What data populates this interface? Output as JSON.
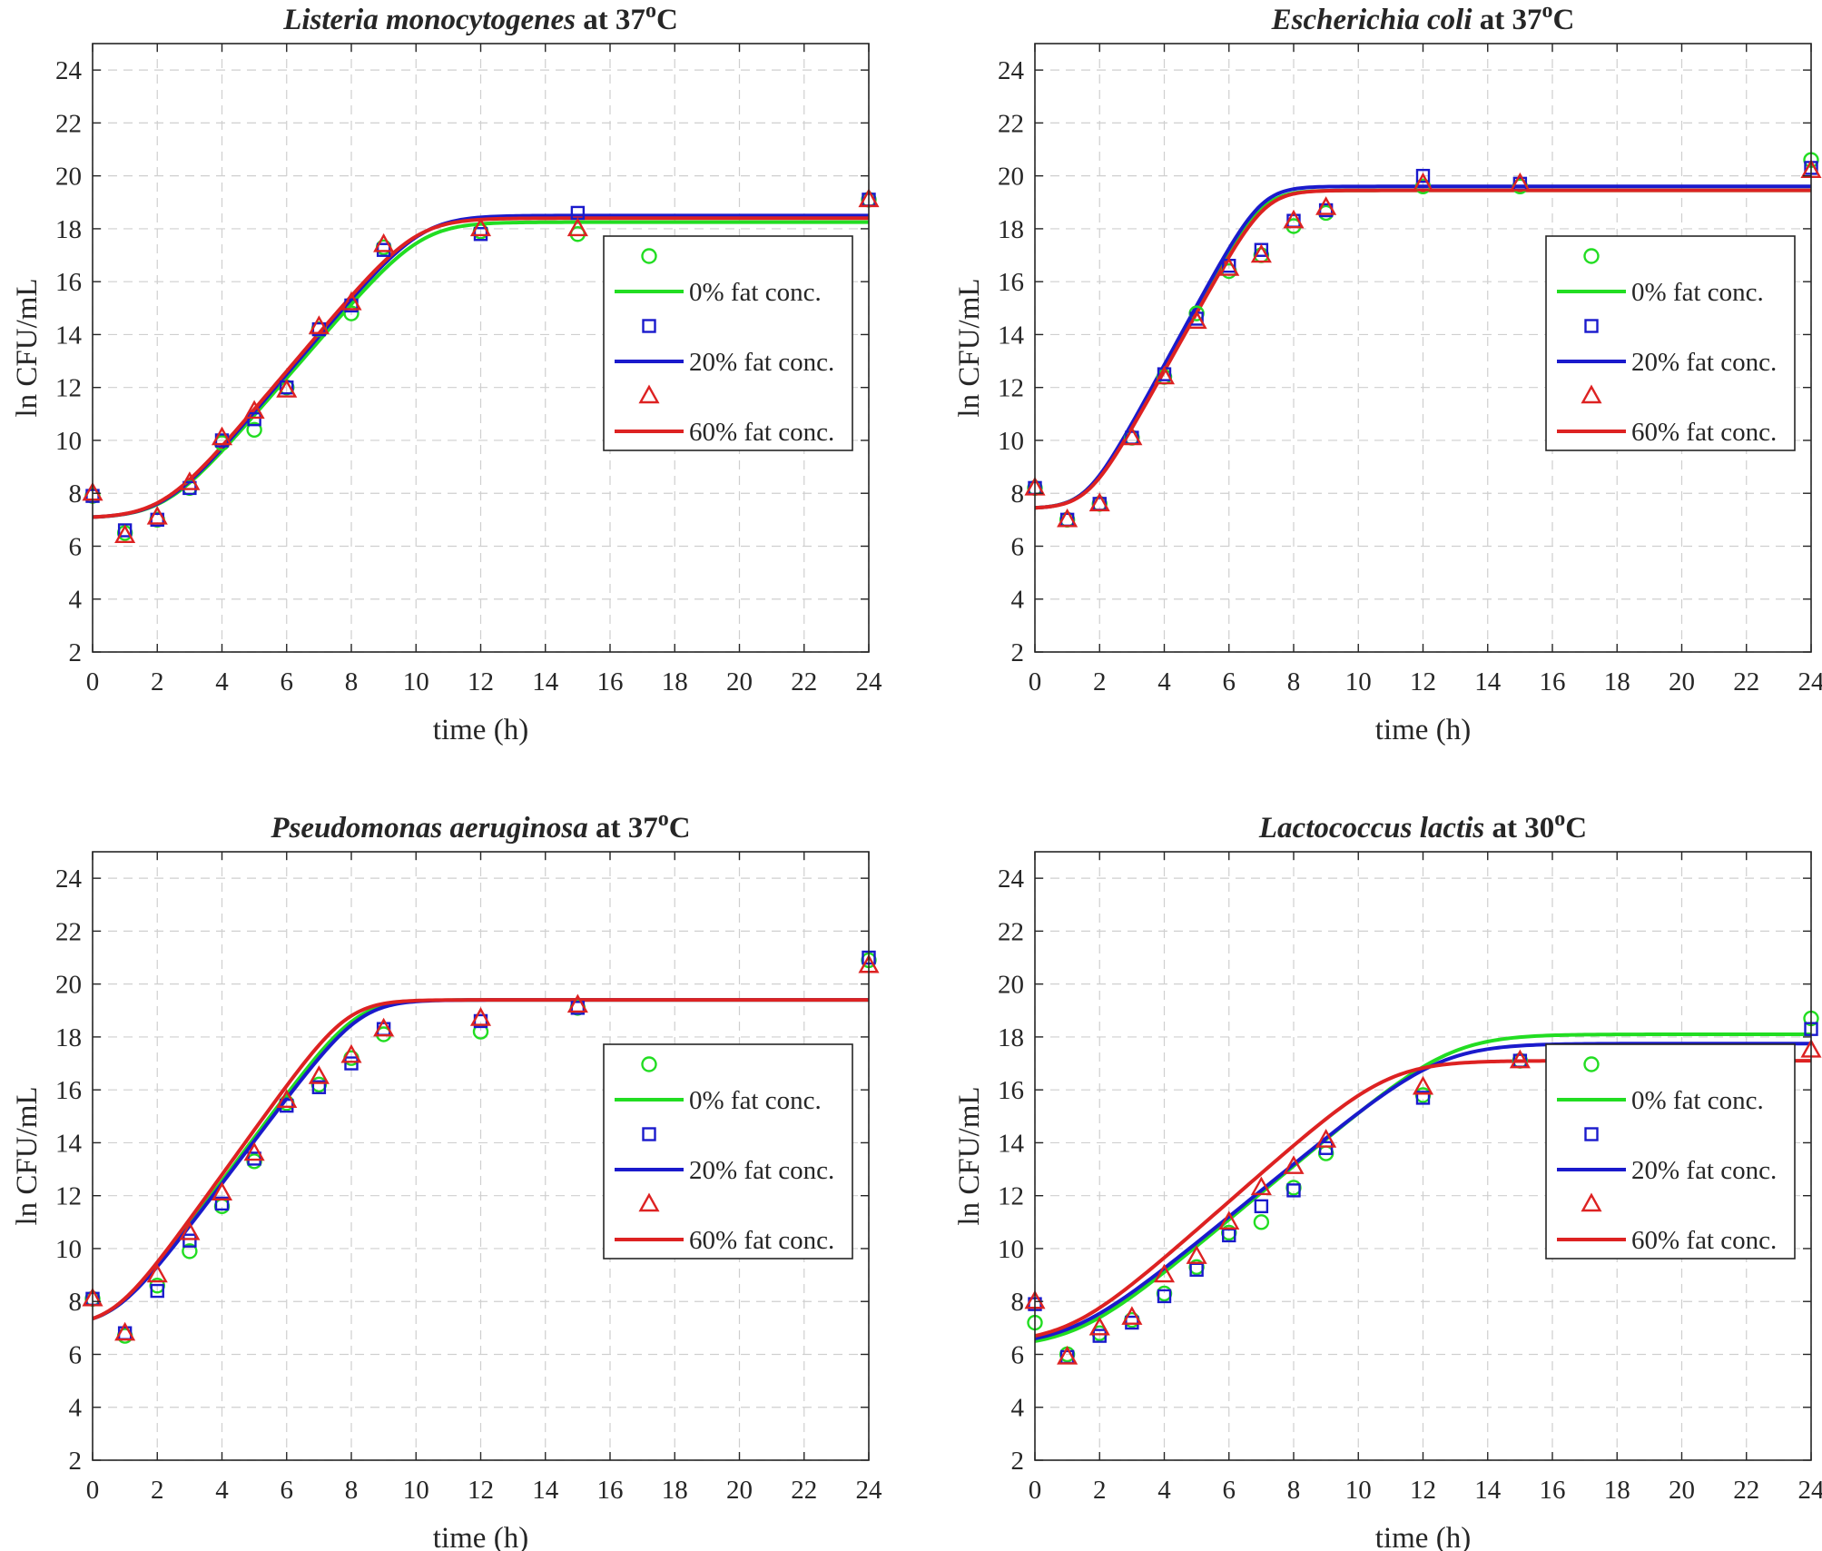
{
  "chart_data": [
    {
      "type": "line",
      "title": {
        "organism": "Listeria monocytogenes",
        "suffix": " at 37",
        "degree": "o",
        "unit": "C"
      },
      "xlabel": "time (h)",
      "ylabel": "ln CFU/mL",
      "xlim": [
        0,
        24
      ],
      "ylim": [
        2,
        25
      ],
      "xticks": [
        0,
        2,
        4,
        6,
        8,
        10,
        12,
        14,
        16,
        18,
        20,
        22,
        24
      ],
      "yticks": [
        2,
        4,
        6,
        8,
        10,
        12,
        14,
        16,
        18,
        20,
        22,
        24
      ],
      "grid": true,
      "legend_position": "lower-right",
      "x": [
        0,
        1,
        2,
        3,
        4,
        5,
        6,
        7,
        8,
        9,
        12,
        15,
        24
      ],
      "series": [
        {
          "name": "0% fat conc.",
          "color": "#22dd22",
          "marker": "circle",
          "values": [
            7.9,
            6.5,
            7.0,
            8.2,
            9.9,
            10.4,
            12.0,
            14.2,
            14.8,
            17.3,
            17.9,
            17.8,
            19.1
          ],
          "fit": {
            "y0": 7.1,
            "ymax": 18.25,
            "mu": 1.42,
            "lag": 2.3
          }
        },
        {
          "name": "20% fat conc.",
          "color": "#1a1acc",
          "marker": "square",
          "values": [
            7.9,
            6.6,
            7.0,
            8.2,
            10.0,
            10.8,
            12.0,
            14.2,
            15.1,
            17.2,
            17.8,
            18.6,
            19.1
          ],
          "fit": {
            "y0": 7.1,
            "ymax": 18.5,
            "mu": 1.44,
            "lag": 2.25
          }
        },
        {
          "name": "60% fat conc.",
          "color": "#dd2222",
          "marker": "triangle",
          "values": [
            8.0,
            6.4,
            7.1,
            8.4,
            10.1,
            11.1,
            11.9,
            14.3,
            15.2,
            17.4,
            18.0,
            18.0,
            19.1
          ],
          "fit": {
            "y0": 7.1,
            "ymax": 18.4,
            "mu": 1.45,
            "lag": 2.2
          }
        }
      ]
    },
    {
      "type": "line",
      "title": {
        "organism": "Escherichia coli",
        "suffix": " at 37",
        "degree": "o",
        "unit": "C"
      },
      "xlabel": "time (h)",
      "ylabel": "ln CFU/mL",
      "xlim": [
        0,
        24
      ],
      "ylim": [
        2,
        25
      ],
      "xticks": [
        0,
        2,
        4,
        6,
        8,
        10,
        12,
        14,
        16,
        18,
        20,
        22,
        24
      ],
      "yticks": [
        2,
        4,
        6,
        8,
        10,
        12,
        14,
        16,
        18,
        20,
        22,
        24
      ],
      "grid": true,
      "legend_position": "lower-right",
      "x": [
        0,
        1,
        2,
        3,
        4,
        5,
        6,
        7,
        8,
        9,
        12,
        15,
        24
      ],
      "series": [
        {
          "name": "0% fat conc.",
          "color": "#22dd22",
          "marker": "circle",
          "values": [
            8.2,
            7.0,
            7.6,
            10.1,
            12.4,
            14.8,
            16.4,
            17.0,
            18.1,
            18.6,
            19.6,
            19.6,
            20.6
          ],
          "fit": {
            "y0": 7.45,
            "ymax": 19.45,
            "mu": 2.22,
            "lag": 1.6
          }
        },
        {
          "name": "20% fat conc.",
          "color": "#1a1acc",
          "marker": "square",
          "values": [
            8.2,
            7.0,
            7.6,
            10.1,
            12.5,
            14.6,
            16.6,
            17.2,
            18.3,
            18.7,
            20.0,
            19.7,
            20.3
          ],
          "fit": {
            "y0": 7.45,
            "ymax": 19.6,
            "mu": 2.25,
            "lag": 1.6
          }
        },
        {
          "name": "60% fat conc.",
          "color": "#dd2222",
          "marker": "triangle",
          "values": [
            8.2,
            7.0,
            7.6,
            10.1,
            12.4,
            14.5,
            16.5,
            17.0,
            18.3,
            18.8,
            19.7,
            19.7,
            20.2
          ],
          "fit": {
            "y0": 7.45,
            "ymax": 19.45,
            "mu": 2.2,
            "lag": 1.65
          }
        }
      ]
    },
    {
      "type": "line",
      "title": {
        "organism": "Pseudomonas aeruginosa",
        "suffix": " at 37",
        "degree": "o",
        "unit": "C"
      },
      "xlabel": "time (h)",
      "ylabel": "ln CFU/mL",
      "xlim": [
        0,
        24
      ],
      "ylim": [
        2,
        25
      ],
      "xticks": [
        0,
        2,
        4,
        6,
        8,
        10,
        12,
        14,
        16,
        18,
        20,
        22,
        24
      ],
      "yticks": [
        2,
        4,
        6,
        8,
        10,
        12,
        14,
        16,
        18,
        20,
        22,
        24
      ],
      "grid": true,
      "legend_position": "lower-right",
      "x": [
        0,
        1,
        2,
        3,
        4,
        5,
        6,
        7,
        8,
        9,
        12,
        15,
        24
      ],
      "series": [
        {
          "name": "0% fat conc.",
          "color": "#22dd22",
          "marker": "circle",
          "values": [
            8.1,
            6.7,
            8.6,
            9.9,
            11.6,
            13.3,
            15.5,
            16.2,
            17.2,
            18.1,
            18.2,
            19.1,
            20.9
          ],
          "fit": {
            "y0": 7.35,
            "ymax": 19.4,
            "mu": 1.65,
            "lag": 0.85
          }
        },
        {
          "name": "20% fat conc.",
          "color": "#1a1acc",
          "marker": "square",
          "values": [
            8.1,
            6.8,
            8.4,
            10.3,
            11.7,
            13.4,
            15.4,
            16.1,
            17.0,
            18.3,
            18.6,
            19.1,
            21.0
          ],
          "fit": {
            "y0": 7.35,
            "ymax": 19.4,
            "mu": 1.62,
            "lag": 0.85
          }
        },
        {
          "name": "60% fat conc.",
          "color": "#dd2222",
          "marker": "triangle",
          "values": [
            8.1,
            6.8,
            9.0,
            10.6,
            12.1,
            13.6,
            15.6,
            16.5,
            17.3,
            18.3,
            18.7,
            19.2,
            20.7
          ],
          "fit": {
            "y0": 7.35,
            "ymax": 19.4,
            "mu": 1.7,
            "lag": 0.8
          }
        }
      ]
    },
    {
      "type": "line",
      "title": {
        "organism": "Lactococcus lactis",
        "suffix": " at 30",
        "degree": "o",
        "unit": "C"
      },
      "xlabel": "time (h)",
      "ylabel": "ln CFU/mL",
      "xlim": [
        0,
        24
      ],
      "ylim": [
        2,
        25
      ],
      "xticks": [
        0,
        2,
        4,
        6,
        8,
        10,
        12,
        14,
        16,
        18,
        20,
        22,
        24
      ],
      "yticks": [
        2,
        4,
        6,
        8,
        10,
        12,
        14,
        16,
        18,
        20,
        22,
        24
      ],
      "grid": true,
      "legend_position": "lower-right",
      "x": [
        0,
        1,
        2,
        3,
        4,
        5,
        6,
        7,
        8,
        9,
        12,
        15,
        24
      ],
      "series": [
        {
          "name": "0% fat conc.",
          "color": "#22dd22",
          "marker": "circle",
          "values": [
            7.2,
            6.0,
            6.8,
            7.3,
            8.3,
            9.3,
            10.6,
            11.0,
            12.3,
            13.6,
            15.8,
            17.1,
            18.7
          ],
          "fit": {
            "y0": 6.5,
            "ymax": 18.1,
            "mu": 1.02,
            "lag": 1.5
          }
        },
        {
          "name": "20% fat conc.",
          "color": "#1a1acc",
          "marker": "square",
          "values": [
            7.9,
            5.9,
            6.7,
            7.2,
            8.2,
            9.2,
            10.5,
            11.6,
            12.2,
            13.8,
            15.7,
            17.1,
            18.3
          ],
          "fit": {
            "y0": 6.6,
            "ymax": 17.75,
            "mu": 1.0,
            "lag": 1.4
          }
        },
        {
          "name": "60% fat conc.",
          "color": "#dd2222",
          "marker": "triangle",
          "values": [
            8.0,
            5.9,
            7.0,
            7.4,
            9.0,
            9.7,
            11.0,
            12.3,
            13.1,
            14.1,
            16.1,
            17.1,
            17.5
          ],
          "fit": {
            "y0": 6.7,
            "ymax": 17.1,
            "mu": 1.08,
            "lag": 1.3
          }
        }
      ]
    }
  ]
}
